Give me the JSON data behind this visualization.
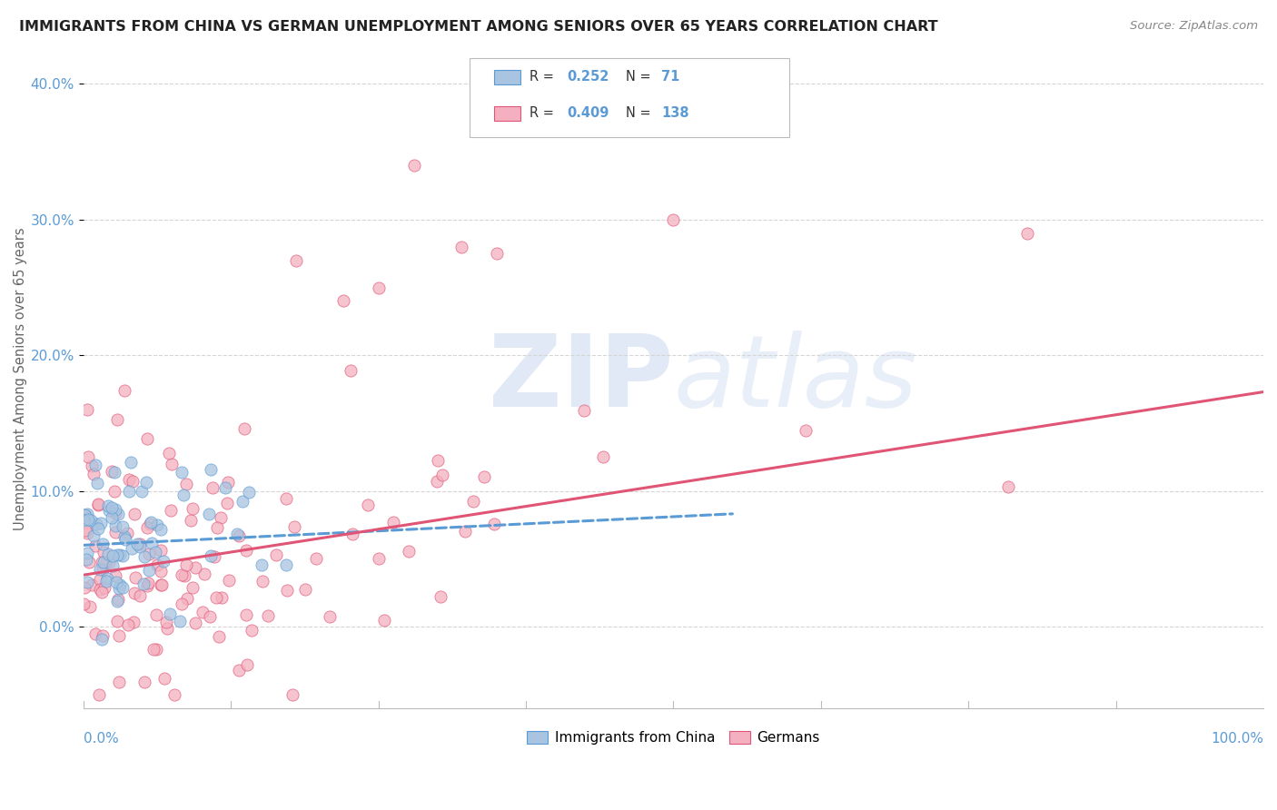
{
  "title": "IMMIGRANTS FROM CHINA VS GERMAN UNEMPLOYMENT AMONG SENIORS OVER 65 YEARS CORRELATION CHART",
  "source": "Source: ZipAtlas.com",
  "ylabel": "Unemployment Among Seniors over 65 years",
  "yticks": [
    0.0,
    0.1,
    0.2,
    0.3,
    0.4
  ],
  "ytick_labels": [
    "0.0%",
    "10.0%",
    "20.0%",
    "30.0%",
    "40.0%"
  ],
  "xmin": 0.0,
  "xmax": 1.0,
  "ymin": -0.06,
  "ymax": 0.425,
  "blue_R": 0.252,
  "blue_N": 71,
  "pink_R": 0.409,
  "pink_N": 138,
  "blue_color": "#a8c4e0",
  "blue_edge_color": "#5b9bd5",
  "pink_color": "#f4b0c0",
  "pink_edge_color": "#e05575",
  "blue_line_color": "#5b9bd5",
  "pink_line_color": "#e05575",
  "watermark_zip": "ZIP",
  "watermark_atlas": "atlas",
  "watermark_color": "#d0dff0",
  "legend_label_blue": "Immigrants from China",
  "legend_label_pink": "Germans",
  "grid_color": "#d5d5d5",
  "spine_color": "#bbbbbb",
  "tick_label_color": "#5b9bd5"
}
